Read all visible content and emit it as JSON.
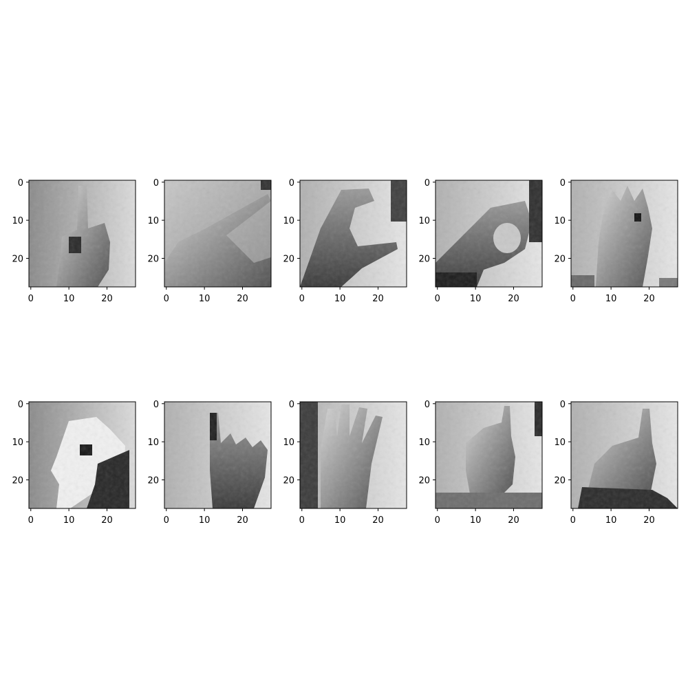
{
  "figure": {
    "background": "#ffffff",
    "rows": 2,
    "cols": 5,
    "colormap": "gray",
    "image_resolution": [
      28,
      28
    ]
  },
  "axis_ticks": {
    "x": [
      {
        "value": 0,
        "label": "0"
      },
      {
        "value": 10,
        "label": "10"
      },
      {
        "value": 20,
        "label": "20"
      }
    ],
    "y": [
      {
        "value": 0,
        "label": "0"
      },
      {
        "value": 10,
        "label": "10"
      },
      {
        "value": 20,
        "label": "20"
      }
    ],
    "extent": [
      -0.5,
      27.5
    ]
  },
  "panels": [
    {
      "id": "panel-1",
      "content": "hand-sign-index-up"
    },
    {
      "id": "panel-2",
      "content": "hand-sign-pointing-right"
    },
    {
      "id": "panel-3",
      "content": "hand-sign-c-shape"
    },
    {
      "id": "panel-4",
      "content": "hand-sign-o-shape"
    },
    {
      "id": "panel-5",
      "content": "hand-sign-open-fingers"
    },
    {
      "id": "panel-6",
      "content": "hand-sign-closed-fist"
    },
    {
      "id": "panel-7",
      "content": "hand-sign-horns"
    },
    {
      "id": "panel-8",
      "content": "hand-sign-four-fingers"
    },
    {
      "id": "panel-9",
      "content": "hand-sign-index-up-fist"
    },
    {
      "id": "panel-10",
      "content": "hand-sign-index-up-hand"
    }
  ]
}
